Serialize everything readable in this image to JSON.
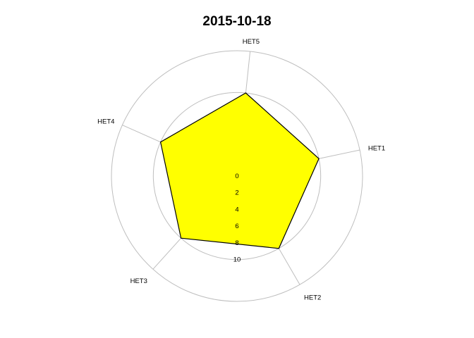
{
  "chart_data": {
    "type": "radar",
    "title": "2015-10-18",
    "axes": [
      "HET1",
      "HET2",
      "HET3",
      "HET4",
      "HET5"
    ],
    "series": [
      {
        "values": [
          5,
          5,
          5,
          5,
          5
        ],
        "fill": "#ffff00",
        "stroke": "#000000"
      }
    ],
    "r_range": [
      -5,
      10
    ],
    "radial_ticks": [
      0,
      2,
      4,
      6,
      8,
      10
    ],
    "rings": [
      0,
      5,
      10
    ],
    "grid": true,
    "grid_color": "#bebebe"
  }
}
